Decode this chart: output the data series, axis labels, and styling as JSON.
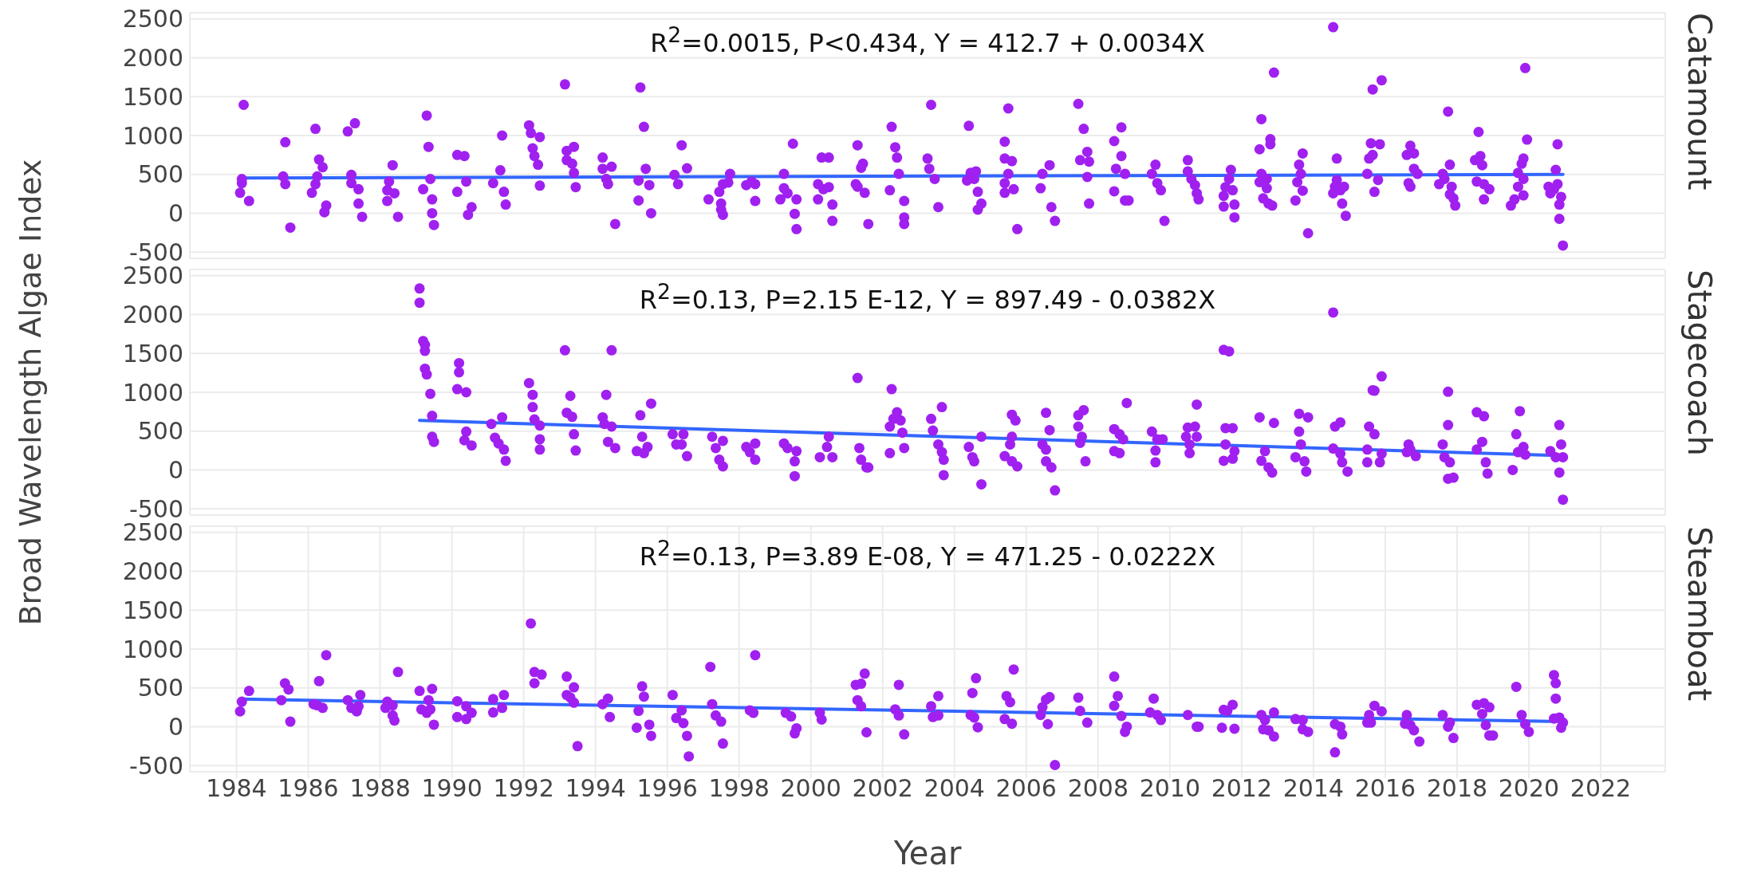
{
  "chart_data": [
    {
      "type": "scatter",
      "title": "Catamount",
      "annotations": [
        "R$^{2}$=0.0015, P<0.434, Y = 412.7 + 0.0034X"
      ],
      "xlim": [
        1982.7,
        2023.8
      ],
      "xticks": [
        1984,
        1986,
        1988,
        1990,
        1992,
        1994,
        1996,
        1998,
        2000,
        2002,
        2004,
        2006,
        2008,
        2010,
        2012,
        2014,
        2016,
        2018,
        2020,
        2022
      ],
      "ylim": [
        -580,
        2580
      ],
      "yticks": [
        -500,
        0,
        500,
        1000,
        1500,
        2000,
        2500
      ],
      "grid": true,
      "tick_labels": "y",
      "series": [
        {
          "marker": "circle",
          "color": "#a020f0",
          "x": [
            1984.2,
            1984.15,
            1984.15,
            1984.1,
            1984.35,
            1985.36,
            1985.3,
            1985.36,
            1985.5,
            1986.2,
            1986.3,
            1986.4,
            1986.25,
            1986.2,
            1986.1,
            1986.5,
            1986.45,
            1987.1,
            1987.3,
            1987.2,
            1987.2,
            1987.4,
            1987.4,
            1987.5,
            1988.35,
            1988.25,
            1988.2,
            1988.4,
            1988.2,
            1988.5,
            1989.3,
            1989.35,
            1989.4,
            1989.2,
            1989.45,
            1989.45,
            1989.5,
            1990.15,
            1990.35,
            1990.15,
            1990.4,
            1990.55,
            1990.45,
            1991.4,
            1991.35,
            1991.15,
            1991.45,
            1991.5,
            1992.15,
            1992.2,
            1992.45,
            1992.25,
            1992.3,
            1992.4,
            1992.45,
            1993.15,
            1993.2,
            1993.4,
            1993.2,
            1993.35,
            1993.4,
            1993.45,
            1994.2,
            1994.2,
            1994.45,
            1994.3,
            1994.35,
            1994.55,
            1995.25,
            1995.35,
            1995.4,
            1995.2,
            1995.5,
            1995.2,
            1995.55,
            1996.4,
            1996.55,
            1996.2,
            1996.3,
            1997.75,
            1997.7,
            1997.55,
            1997.45,
            1997.15,
            1997.5,
            1997.5,
            1997.55,
            1998.35,
            1998.45,
            1998.2,
            1998.45,
            1999.5,
            1999.25,
            1999.25,
            1999.35,
            1999.15,
            1999.6,
            1999.55,
            1999.6,
            2000.3,
            2000.5,
            2000.2,
            2000.35,
            2000.5,
            2000.2,
            2000.6,
            2000.6,
            2001.3,
            2001.45,
            2001.4,
            2001.25,
            2001.3,
            2001.5,
            2001.6,
            2002.25,
            2002.35,
            2002.4,
            2002.45,
            2002.2,
            2002.6,
            2002.6,
            2002.6,
            2003.35,
            2003.25,
            2003.3,
            2003.45,
            2003.55,
            2004.4,
            2004.45,
            2004.55,
            2004.6,
            2004.35,
            2004.65,
            2004.75,
            2004.65,
            2005.5,
            2005.4,
            2005.4,
            2005.6,
            2005.5,
            2005.4,
            2005.65,
            2005.4,
            2005.75,
            2006.4,
            2006.45,
            2006.65,
            2006.7,
            2006.8,
            2007.45,
            2007.6,
            2007.7,
            2007.5,
            2007.75,
            2007.7,
            2007.75,
            2008.45,
            2008.65,
            2008.65,
            2008.5,
            2008.75,
            2008.45,
            2008.75,
            2008.85,
            2009.6,
            2009.5,
            2009.65,
            2009.75,
            2009.85,
            2010.5,
            2010.5,
            2010.6,
            2010.7,
            2010.75,
            2010.8,
            2011.7,
            2011.65,
            2011.75,
            2011.55,
            2011.5,
            2011.5,
            2011.8,
            2011.8,
            2012.55,
            2012.5,
            2012.8,
            2012.8,
            2012.55,
            2012.7,
            2012.5,
            2012.7,
            2012.6,
            2012.75,
            2012.85,
            2012.9,
            2013.7,
            2013.6,
            2013.65,
            2013.55,
            2013.7,
            2013.5,
            2013.85,
            2014.55,
            2014.65,
            2014.65,
            2014.6,
            2014.75,
            2014.55,
            2014.85,
            2014.8,
            2014.9,
            2015.65,
            2015.9,
            2015.6,
            2015.85,
            2015.65,
            2015.55,
            2015.5,
            2015.8,
            2015.7,
            2016.7,
            2016.8,
            2016.6,
            2016.8,
            2016.9,
            2016.65,
            2016.7,
            2017.75,
            2017.8,
            2017.6,
            2017.65,
            2017.5,
            2017.85,
            2017.8,
            2017.9,
            2017.95,
            2018.6,
            2018.65,
            2018.5,
            2018.7,
            2018.55,
            2018.75,
            2018.9,
            2018.75,
            2019.9,
            2019.95,
            2019.85,
            2019.8,
            2019.7,
            2019.85,
            2019.7,
            2019.6,
            2019.5,
            2019.85,
            2020.8,
            2020.75,
            2020.55,
            2020.7,
            2020.6,
            2020.9,
            2020.85,
            2020.85,
            2020.95,
            2020.8
          ],
          "values": [
            1395,
            441,
            388,
            263,
            158,
            915,
            474,
            375,
            -184,
            1086,
            691,
            592,
            474,
            375,
            263,
            99,
            13,
            1053,
            1158,
            494,
            388,
            309,
            125,
            -46,
            619,
            408,
            296,
            257,
            158,
            -46,
            1257,
            855,
            441,
            309,
            178,
            0,
            -151,
            750,
            737,
            276,
            408,
            79,
            -20,
            1000,
            553,
            388,
            276,
            112,
            1132,
            1033,
            980,
            836,
            737,
            625,
            355,
            1658,
            803,
            855,
            684,
            638,
            520,
            336,
            717,
            572,
            599,
            441,
            375,
            -138,
            1619,
            1112,
            572,
            421,
            362,
            165,
            0,
            875,
            579,
            494,
            375,
            507,
            395,
            375,
            276,
            178,
            125,
            46,
            -20,
            408,
            375,
            362,
            158,
            895,
            507,
            322,
            257,
            178,
            178,
            -7,
            -204,
            717,
            717,
            375,
            309,
            336,
            178,
            112,
            -99,
            875,
            638,
            585,
            375,
            342,
            263,
            -138,
            1112,
            849,
            717,
            507,
            296,
            158,
            -53,
            -138,
            1395,
            704,
            572,
            441,
            79,
            1125,
            520,
            441,
            539,
            421,
            276,
            125,
            46,
            1349,
            921,
            704,
            671,
            507,
            388,
            309,
            263,
            -204,
            322,
            507,
            619,
            79,
            -99,
            1408,
            1086,
            790,
            684,
            664,
            467,
            125,
            928,
            1105,
            737,
            572,
            507,
            283,
            165,
            165,
            625,
            507,
            388,
            296,
            -99,
            684,
            539,
            441,
            362,
            257,
            178,
            559,
            441,
            296,
            336,
            224,
            86,
            112,
            -53,
            1211,
            823,
            954,
            888,
            507,
            441,
            401,
            322,
            191,
            125,
            99,
            1810,
            770,
            625,
            507,
            401,
            290,
            165,
            -257,
            2395,
            704,
            428,
            342,
            296,
            257,
            342,
            125,
            -33,
            1593,
            1711,
            901,
            888,
            750,
            704,
            507,
            428,
            276,
            869,
            770,
            750,
            572,
            507,
            388,
            342,
            1309,
            625,
            507,
            441,
            375,
            342,
            243,
            191,
            99,
            1046,
            737,
            684,
            619,
            408,
            375,
            309,
            178,
            1869,
            948,
            704,
            638,
            520,
            441,
            342,
            178,
            99,
            230,
            888,
            559,
            342,
            309,
            257,
            211,
            112,
            -72,
            -415,
            375
          ]
        },
        {
          "type": "line",
          "color": "#3366ff",
          "x": [
            1984.15,
            2020.95
          ],
          "values": [
            454,
            500
          ]
        }
      ]
    },
    {
      "type": "scatter",
      "title": "Stagecoach",
      "ylabel": "Broad Wavelength Algae Index",
      "annotations": [
        "R$^{2}$=0.13, P=2.15 E-12, Y = 897.49 - 0.0382X"
      ],
      "xlim": [
        1982.7,
        2023.8
      ],
      "xticks": [
        1984,
        1986,
        1988,
        1990,
        1992,
        1994,
        1996,
        1998,
        2000,
        2002,
        2004,
        2006,
        2008,
        2010,
        2012,
        2014,
        2016,
        2018,
        2020,
        2022
      ],
      "ylim": [
        -580,
        2580
      ],
      "yticks": [
        -500,
        0,
        500,
        1000,
        1500,
        2000,
        2500
      ],
      "grid": true,
      "tick_labels": "y",
      "series": [
        {
          "marker": "circle",
          "color": "#a020f0",
          "x": [
            1989.1,
            1989.1,
            1989.2,
            1989.25,
            1989.25,
            1989.25,
            1989.3,
            1989.4,
            1989.45,
            1989.45,
            1989.5,
            1990.2,
            1990.2,
            1990.15,
            1990.4,
            1990.4,
            1990.35,
            1990.55,
            1991.1,
            1991.4,
            1991.2,
            1991.3,
            1991.45,
            1991.5,
            1992.15,
            1992.25,
            1992.25,
            1992.3,
            1992.45,
            1992.45,
            1992.45,
            1993.15,
            1993.3,
            1993.2,
            1993.35,
            1993.4,
            1993.45,
            1994.45,
            1994.3,
            1994.2,
            1994.25,
            1994.45,
            1994.35,
            1994.55,
            1995.25,
            1995.55,
            1995.3,
            1995.15,
            1995.45,
            1995.35,
            1996.15,
            1996.45,
            1996.25,
            1996.4,
            1996.55,
            1997.25,
            1997.55,
            1997.35,
            1997.45,
            1997.55,
            1998.2,
            1998.45,
            1998.3,
            1998.45,
            1999.25,
            1999.35,
            1999.6,
            1999.55,
            1999.55,
            2000.5,
            2000.45,
            2000.25,
            2000.6,
            2001.3,
            2001.35,
            2001.4,
            2001.55,
            2001.6,
            2002.25,
            2002.4,
            2002.3,
            2002.5,
            2002.2,
            2002.55,
            2002.6,
            2002.2,
            2003.35,
            2003.65,
            2003.4,
            2003.55,
            2003.65,
            2003.7,
            2003.7,
            2004.75,
            2004.4,
            2004.5,
            2004.55,
            2004.75,
            2005.6,
            2005.7,
            2005.6,
            2005.55,
            2005.4,
            2005.75,
            2005.6,
            2006.55,
            2006.65,
            2006.45,
            2006.55,
            2006.55,
            2006.7,
            2006.8,
            2007.6,
            2007.45,
            2007.45,
            2007.55,
            2007.5,
            2007.65,
            2008.8,
            2008.45,
            2008.6,
            2008.7,
            2008.45,
            2008.6,
            2009.5,
            2009.65,
            2009.8,
            2009.6,
            2009.6,
            2010.75,
            2010.5,
            2010.7,
            2010.45,
            2010.75,
            2010.55,
            2010.55,
            2011.5,
            2011.65,
            2011.55,
            2011.75,
            2011.55,
            2011.8,
            2011.5,
            2011.75,
            2012.5,
            2012.9,
            2012.65,
            2012.55,
            2012.75,
            2012.85,
            2013.6,
            2013.85,
            2013.6,
            2013.65,
            2013.5,
            2013.75,
            2013.8,
            2014.55,
            2014.75,
            2014.6,
            2014.55,
            2014.75,
            2014.8,
            2014.95,
            2015.9,
            2015.65,
            2015.7,
            2015.55,
            2015.7,
            2015.5,
            2015.9,
            2015.5,
            2015.85,
            2016.65,
            2016.7,
            2016.85,
            2016.6,
            2017.75,
            2017.75,
            2017.6,
            2017.65,
            2017.8,
            2017.9,
            2017.75,
            2018.55,
            2018.75,
            2018.7,
            2018.55,
            2018.8,
            2018.85,
            2019.75,
            2019.65,
            2019.85,
            2019.7,
            2019.55,
            2019.9,
            2020.85,
            2020.9,
            2020.6,
            2020.75,
            2020.95,
            2020.85,
            2020.95
          ],
          "values": [
            2336,
            2152,
            1658,
            1612,
            1533,
            1303,
            1230,
            980,
            697,
            428,
            362,
            1375,
            1257,
            1040,
            1000,
            494,
            382,
            316,
            592,
            678,
            415,
            342,
            263,
            118,
            1119,
            967,
            809,
            651,
            572,
            395,
            263,
            1540,
            954,
            737,
            684,
            461,
            250,
            1540,
            967,
            678,
            592,
            559,
            362,
            283,
            704,
            855,
            428,
            243,
            296,
            217,
            461,
            461,
            329,
            329,
            178,
            428,
            375,
            283,
            132,
            46,
            296,
            342,
            230,
            132,
            342,
            283,
            243,
            112,
            -79,
            428,
            296,
            165,
            165,
            1184,
            283,
            132,
            33,
            33,
            1040,
            743,
            658,
            638,
            559,
            480,
            283,
            217,
            658,
            809,
            507,
            329,
            230,
            132,
            -66,
            -184,
            296,
            165,
            112,
            428,
            711,
            638,
            428,
            329,
            178,
            46,
            112,
            737,
            513,
            329,
            263,
            112,
            33,
            -263,
            770,
            704,
            559,
            428,
            349,
            112,
            862,
            526,
            461,
            395,
            243,
            217,
            494,
            395,
            395,
            250,
            99,
            842,
            546,
            559,
            428,
            428,
            329,
            217,
            1546,
            1527,
            539,
            539,
            329,
            243,
            118,
            145,
            678,
            605,
            243,
            118,
            33,
            -33,
            724,
            678,
            494,
            329,
            165,
            112,
            -20,
            2027,
            612,
            559,
            276,
            211,
            99,
            -20,
            1204,
            1026,
            1020,
            559,
            461,
            263,
            211,
            99,
            99,
            329,
            263,
            178,
            230,
            1007,
            579,
            329,
            165,
            99,
            -99,
            -112,
            743,
            691,
            362,
            263,
            99,
            -46,
            757,
            461,
            296,
            230,
            0,
            197,
            579,
            329,
            243,
            165,
            165,
            -33,
            -382
          ]
        },
        {
          "type": "line",
          "color": "#3366ff",
          "x": [
            1989.1,
            2020.95
          ],
          "values": [
            638,
            184
          ]
        }
      ]
    },
    {
      "type": "scatter",
      "title": "Steamboat",
      "xlabel": "Year",
      "annotations": [
        "R$^{2}$=0.13, P=3.89 E-08, Y = 471.25 - 0.0222X"
      ],
      "xlim": [
        1982.7,
        2023.8
      ],
      "xticks": [
        1984,
        1986,
        1988,
        1990,
        1992,
        1994,
        1996,
        1998,
        2000,
        2002,
        2004,
        2006,
        2008,
        2010,
        2012,
        2014,
        2016,
        2018,
        2020,
        2022
      ],
      "ylim": [
        -580,
        2580
      ],
      "yticks": [
        -500,
        0,
        500,
        1000,
        1500,
        2000,
        2500
      ],
      "grid": true,
      "series": [
        {
          "marker": "circle",
          "color": "#a020f0",
          "x": [
            1984.1,
            1984.15,
            1984.35,
            1985.35,
            1985.45,
            1985.25,
            1985.5,
            1986.5,
            1986.3,
            1986.15,
            1986.25,
            1986.4,
            1987.1,
            1987.2,
            1987.35,
            1987.45,
            1987.4,
            1988.5,
            1988.2,
            1988.35,
            1988.15,
            1988.35,
            1988.4,
            1989.1,
            1989.45,
            1989.35,
            1989.15,
            1989.3,
            1989.4,
            1989.5,
            1990.15,
            1990.4,
            1990.55,
            1990.15,
            1990.4,
            1991.15,
            1991.45,
            1991.4,
            1991.15,
            1992.2,
            1992.3,
            1992.5,
            1992.3,
            1993.2,
            1993.4,
            1993.2,
            1993.3,
            1993.4,
            1993.5,
            1994.35,
            1994.2,
            1994.4,
            1995.3,
            1995.35,
            1995.2,
            1995.5,
            1995.15,
            1995.55,
            1996.15,
            1996.4,
            1996.25,
            1996.45,
            1996.55,
            1996.6,
            1997.2,
            1997.25,
            1997.35,
            1997.5,
            1997.55,
            1998.45,
            1998.3,
            1998.4,
            1999.3,
            1999.45,
            1999.55,
            1999.6,
            2000.25,
            2000.3,
            2001.25,
            2001.4,
            2001.5,
            2001.3,
            2001.4,
            2001.55,
            2002.45,
            2002.35,
            2002.45,
            2002.6,
            2003.35,
            2003.4,
            2003.55,
            2003.55,
            2004.6,
            2004.5,
            2004.45,
            2004.55,
            2004.65,
            2005.65,
            2005.45,
            2005.55,
            2005.4,
            2005.6,
            2006.65,
            2006.55,
            2006.45,
            2006.4,
            2006.6,
            2006.8,
            2007.45,
            2007.5,
            2007.7,
            2008.45,
            2008.55,
            2008.45,
            2008.65,
            2008.8,
            2008.75,
            2009.55,
            2009.45,
            2009.65,
            2009.75,
            2010.5,
            2010.75,
            2010.8,
            2011.5,
            2011.6,
            2011.75,
            2011.45,
            2011.8,
            2012.55,
            2012.65,
            2012.9,
            2012.75,
            2012.9,
            2012.6,
            2013.5,
            2013.7,
            2013.7,
            2013.85,
            2014.6,
            2014.75,
            2014.8,
            2014.6,
            2015.55,
            2015.7,
            2015.9,
            2015.6,
            2015.5,
            2016.6,
            2016.55,
            2016.7,
            2016.8,
            2016.95,
            2017.6,
            2017.8,
            2017.75,
            2017.9,
            2018.55,
            2018.75,
            2018.9,
            2018.7,
            2018.8,
            2018.9,
            2019.0,
            2019.65,
            2019.8,
            2019.9,
            2020.0,
            2020.7,
            2020.75,
            2020.75,
            2020.7,
            2020.85,
            2020.95,
            2020.9
          ],
          "values": [
            197,
            322,
            461,
            559,
            480,
            342,
            66,
            921,
            586,
            290,
            276,
            243,
            342,
            243,
            197,
            408,
            263,
            704,
            322,
            276,
            243,
            145,
            79,
            461,
            487,
            342,
            224,
            178,
            224,
            26,
            329,
            263,
            178,
            125,
            99,
            355,
            408,
            243,
            184,
            1329,
            704,
            671,
            559,
            645,
            507,
            408,
            375,
            309,
            -250,
            362,
            290,
            125,
            520,
            388,
            204,
            26,
            -13,
            -118,
            408,
            211,
            112,
            46,
            -118,
            -382,
            770,
            290,
            145,
            66,
            -217,
            921,
            211,
            178,
            178,
            132,
            -86,
            -20,
            178,
            92,
            539,
            553,
            684,
            342,
            263,
            -72,
            539,
            224,
            145,
            -99,
            263,
            125,
            395,
            145,
            625,
            434,
            151,
            118,
            -7,
            737,
            395,
            316,
            99,
            39,
            382,
            349,
            250,
            151,
            33,
            -493,
            375,
            204,
            53,
            645,
            395,
            270,
            138,
            0,
            -66,
            362,
            184,
            151,
            86,
            151,
            0,
            0,
            217,
            204,
            283,
            -13,
            -26,
            151,
            86,
            184,
            -46,
            -125,
            -33,
            99,
            86,
            -33,
            -66,
            33,
            0,
            -99,
            -329,
            151,
            270,
            197,
            53,
            53,
            151,
            39,
            20,
            -46,
            -191,
            151,
            53,
            0,
            -145,
            283,
            303,
            250,
            165,
            20,
            -112,
            -112,
            513,
            151,
            33,
            -66,
            665,
            559,
            362,
            105,
            118,
            53,
            -13
          ]
        },
        {
          "type": "line",
          "color": "#3366ff",
          "x": [
            1984.1,
            2020.95
          ],
          "values": [
            355,
            66
          ]
        }
      ]
    }
  ]
}
